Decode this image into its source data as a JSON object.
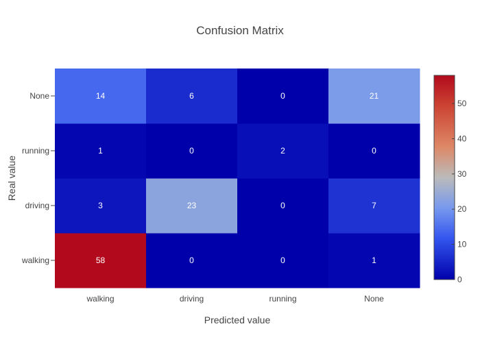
{
  "chart_data": {
    "type": "heatmap",
    "title": "Confusion Matrix",
    "xlabel": "Predicted value",
    "ylabel": "Real value",
    "x_categories": [
      "walking",
      "driving",
      "running",
      "None"
    ],
    "y_categories": [
      "walking",
      "driving",
      "running",
      "None"
    ],
    "z": [
      [
        58,
        0,
        0,
        1
      ],
      [
        3,
        23,
        0,
        7
      ],
      [
        1,
        0,
        2,
        0
      ],
      [
        14,
        6,
        0,
        21
      ]
    ],
    "colorscale": {
      "type": "coolwarm",
      "range": [
        0,
        58
      ],
      "ticks": [
        0,
        10,
        20,
        30,
        40,
        50
      ],
      "stops": [
        [
          0.0,
          "#0000aa"
        ],
        [
          0.2,
          "#3355ee"
        ],
        [
          0.35,
          "#7799ee"
        ],
        [
          0.5,
          "#bbbbbb"
        ],
        [
          0.65,
          "#dd8866"
        ],
        [
          0.85,
          "#cc4433"
        ],
        [
          1.0,
          "#b20a1c"
        ]
      ]
    }
  }
}
